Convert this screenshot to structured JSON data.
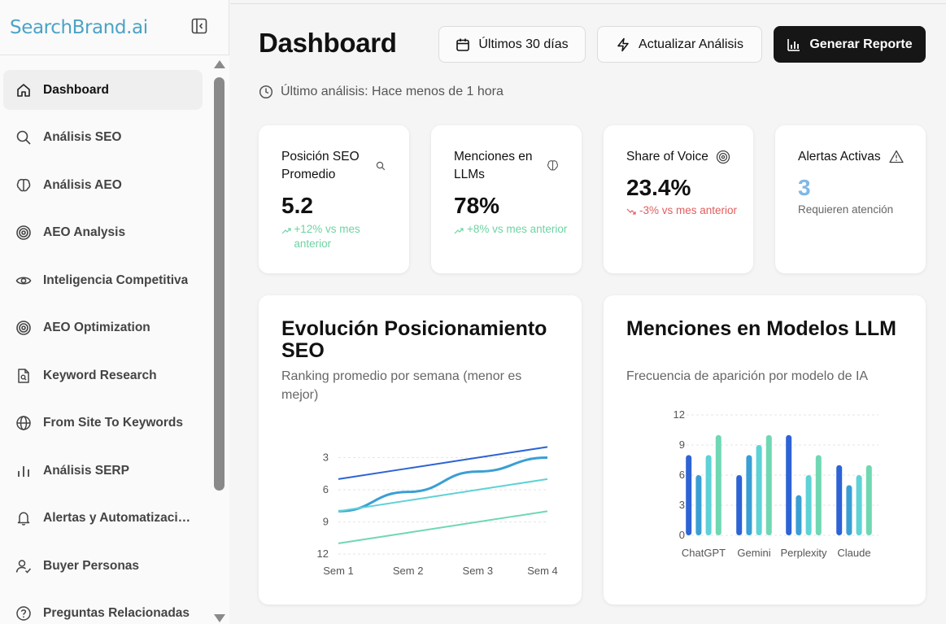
{
  "brand": "SearchBrand.ai",
  "sidebar": {
    "items": [
      {
        "label": "Dashboard",
        "icon": "home-icon"
      },
      {
        "label": "Análisis SEO",
        "icon": "search-icon"
      },
      {
        "label": "Análisis AEO",
        "icon": "brain-icon"
      },
      {
        "label": "AEO Analysis",
        "icon": "target-icon"
      },
      {
        "label": "Inteligencia Competitiva",
        "icon": "eye-icon"
      },
      {
        "label": "AEO Optimization",
        "icon": "target-icon"
      },
      {
        "label": "Keyword Research",
        "icon": "file-search-icon"
      },
      {
        "label": "From Site To Keywords",
        "icon": "globe-icon"
      },
      {
        "label": "Análisis SERP",
        "icon": "bar-chart-icon"
      },
      {
        "label": "Alertas y Automatizaciones",
        "icon": "bell-icon"
      },
      {
        "label": "Buyer Personas",
        "icon": "user-check-icon"
      },
      {
        "label": "Preguntas Relacionadas",
        "icon": "help-circle-icon"
      }
    ]
  },
  "header": {
    "title": "Dashboard",
    "date_range_label": "Últimos 30 días",
    "refresh_label": "Actualizar Análisis",
    "report_label": "Generar Reporte",
    "last_analysis": "Último análisis: Hace menos de 1 hora"
  },
  "stats": [
    {
      "title": "Posición SEO Promedio",
      "value": "5.2",
      "change": "+12% vs mes anterior",
      "trend": "up",
      "icon": "search-icon"
    },
    {
      "title": "Menciones en LLMs",
      "value": "78%",
      "change": "+8% vs mes anterior",
      "trend": "up",
      "icon": "brain-icon"
    },
    {
      "title": "Share of Voice",
      "value": "23.4%",
      "change": "-3% vs mes anterior",
      "trend": "down",
      "icon": "target-icon"
    },
    {
      "title": "Alertas Activas",
      "value": "3",
      "change": "Requieren atención",
      "trend": "neutral",
      "icon": "alert-triangle-icon"
    }
  ],
  "colors": {
    "accent": "#4ba3c7",
    "positive": "#6fd3a4",
    "negative": "#e35d5d",
    "series": [
      "#2d63d4",
      "#3a9fd4",
      "#5ed2d6",
      "#6fd8b2"
    ]
  },
  "chart_data": [
    {
      "type": "line",
      "title": "Evolución Posicionamiento SEO",
      "subtitle": "Ranking promedio por semana (menor es mejor)",
      "categories": [
        "Sem 1",
        "Sem 2",
        "Sem 3",
        "Sem 4"
      ],
      "yticks": [
        "3",
        "6",
        "9",
        "12"
      ],
      "ylim": [
        0,
        12
      ],
      "y_inverted": true,
      "grid": true,
      "series": [
        {
          "values": [
            5,
            4,
            3,
            2
          ]
        },
        {
          "values": [
            8,
            6.2,
            4.3,
            3
          ]
        },
        {
          "values": [
            8,
            7,
            6,
            5
          ]
        },
        {
          "values": [
            11,
            10,
            9,
            8
          ]
        }
      ]
    },
    {
      "type": "bar",
      "title": "Menciones en Modelos LLM",
      "subtitle": "Frecuencia de aparición por modelo de IA",
      "categories": [
        "ChatGPT",
        "Gemini",
        "Perplexity",
        "Claude"
      ],
      "yticks": [
        "0",
        "3",
        "6",
        "9",
        "12"
      ],
      "ylim": [
        0,
        12
      ],
      "grid": true,
      "series": [
        {
          "values": [
            8,
            6,
            10,
            7
          ]
        },
        {
          "values": [
            6,
            8,
            4,
            5
          ]
        },
        {
          "values": [
            8,
            9,
            6,
            6
          ]
        },
        {
          "values": [
            10,
            10,
            8,
            7
          ]
        }
      ]
    }
  ]
}
